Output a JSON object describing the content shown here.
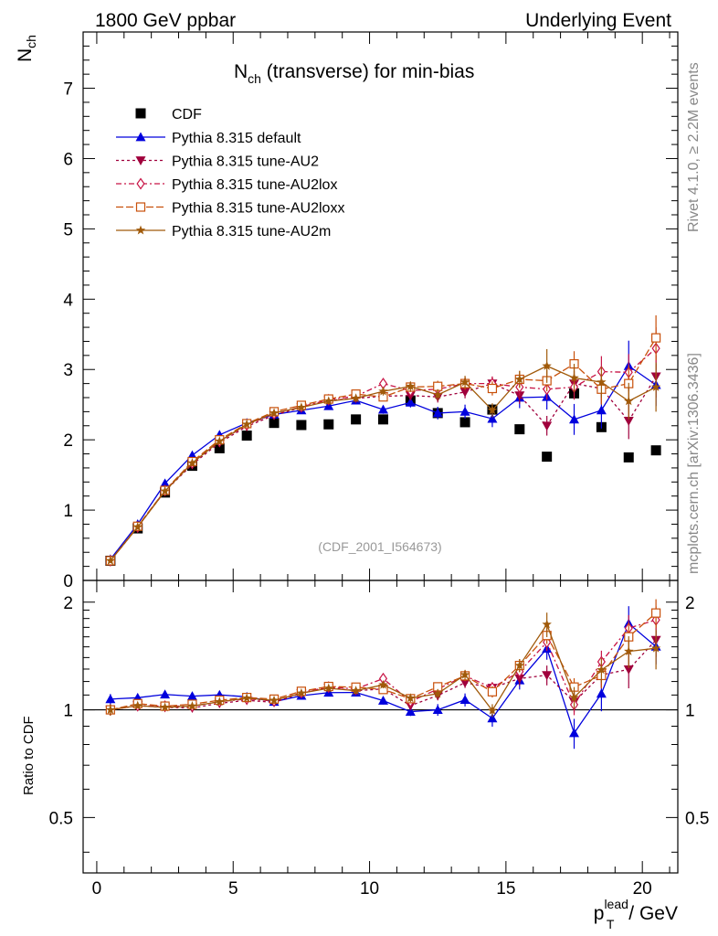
{
  "header": {
    "left": "1800 GeV ppbar",
    "right": "Underlying Event",
    "side_top": "Rivet 4.1.0, ≥ 2.2M events",
    "side_bottom": "mcplots.cern.ch [arXiv:1306.3436]"
  },
  "chart_data": {
    "type": "line",
    "title_main": "N",
    "title_sub": "ch",
    "title_rest": " (transverse) for min-bias",
    "watermark": "(CDF_2001_I564673)",
    "ylabel_main": "N",
    "ylabel_sub": "ch",
    "ratio_ylabel": "Ratio to CDF",
    "xlabel_p": "p",
    "xlabel_sup": "lead",
    "xlabel_sub": "T",
    "xlabel_rest": " / GeV",
    "xlim": [
      -0.5,
      21.3
    ],
    "ylim": [
      0,
      7.8
    ],
    "ratio_ylim": [
      0.35,
      2.3
    ],
    "x_ticks": [
      "0",
      "5",
      "10",
      "15",
      "20"
    ],
    "y_ticks": [
      "0",
      "1",
      "2",
      "3",
      "4",
      "5",
      "6",
      "7"
    ],
    "ratio_ticks_left": [
      "0.5",
      "1",
      "2"
    ],
    "ratio_ticks_right": [
      "0.5",
      "1",
      "2"
    ],
    "x": [
      0.5,
      1.5,
      2.5,
      3.5,
      4.5,
      5.5,
      6.5,
      7.5,
      8.5,
      9.5,
      10.5,
      11.5,
      12.5,
      13.5,
      14.5,
      15.5,
      16.5,
      17.5,
      18.5,
      19.5,
      20.5
    ],
    "data": {
      "name": "CDF",
      "values": [
        0.28,
        0.74,
        1.25,
        1.63,
        1.88,
        2.06,
        2.24,
        2.21,
        2.22,
        2.29,
        2.29,
        2.56,
        2.38,
        2.25,
        2.43,
        2.15,
        1.76,
        2.66,
        2.18,
        1.75,
        1.85
      ]
    },
    "series": [
      {
        "name": "Pythia 8.315 default",
        "color": "#0000dd",
        "dash": "",
        "marker": "triangle-up",
        "values": [
          0.3,
          0.8,
          1.38,
          1.78,
          2.07,
          2.24,
          2.36,
          2.42,
          2.48,
          2.56,
          2.43,
          2.53,
          2.38,
          2.4,
          2.3,
          2.6,
          2.61,
          2.29,
          2.42,
          3.05,
          2.78
        ],
        "errors": [
          0.01,
          0.01,
          0.01,
          0.01,
          0.02,
          0.02,
          0.03,
          0.03,
          0.04,
          0.05,
          0.06,
          0.07,
          0.09,
          0.1,
          0.12,
          0.15,
          0.18,
          0.22,
          0.26,
          0.36,
          0.3
        ]
      },
      {
        "name": "Pythia 8.315 tune-AU2",
        "color": "#a0003c",
        "dash": "3,3",
        "marker": "triangle-down",
        "values": [
          0.28,
          0.76,
          1.27,
          1.65,
          1.96,
          2.19,
          2.35,
          2.46,
          2.56,
          2.59,
          2.62,
          2.63,
          2.61,
          2.68,
          2.8,
          2.63,
          2.2,
          2.8,
          2.73,
          2.27,
          2.9
        ],
        "errors": [
          0.01,
          0.01,
          0.01,
          0.01,
          0.02,
          0.02,
          0.03,
          0.03,
          0.04,
          0.05,
          0.06,
          0.07,
          0.08,
          0.09,
          0.1,
          0.12,
          0.14,
          0.18,
          0.22,
          0.26,
          0.3
        ]
      },
      {
        "name": "Pythia 8.315 tune-AU2lox",
        "color": "#c81446",
        "dash": "6,3,2,3",
        "marker": "diamond-open",
        "values": [
          0.28,
          0.76,
          1.28,
          1.67,
          1.98,
          2.21,
          2.37,
          2.47,
          2.57,
          2.62,
          2.8,
          2.7,
          2.72,
          2.8,
          2.8,
          2.75,
          2.72,
          2.75,
          2.97,
          2.96,
          3.3
        ],
        "errors": [
          0.01,
          0.01,
          0.01,
          0.01,
          0.02,
          0.02,
          0.03,
          0.03,
          0.04,
          0.05,
          0.06,
          0.07,
          0.08,
          0.09,
          0.1,
          0.12,
          0.15,
          0.18,
          0.22,
          0.26,
          0.3
        ]
      },
      {
        "name": "Pythia 8.315 tune-AU2loxx",
        "color": "#c8500a",
        "dash": "8,3",
        "marker": "square-open",
        "values": [
          0.28,
          0.77,
          1.28,
          1.69,
          2.0,
          2.23,
          2.4,
          2.49,
          2.58,
          2.65,
          2.61,
          2.75,
          2.76,
          2.8,
          2.73,
          2.86,
          2.84,
          3.08,
          2.72,
          2.8,
          3.45
        ],
        "errors": [
          0.01,
          0.01,
          0.01,
          0.01,
          0.02,
          0.02,
          0.03,
          0.03,
          0.04,
          0.05,
          0.06,
          0.07,
          0.08,
          0.09,
          0.1,
          0.12,
          0.15,
          0.18,
          0.22,
          0.26,
          0.32
        ]
      },
      {
        "name": "Pythia 8.315 tune-AU2m",
        "color": "#a05a0a",
        "dash": "",
        "marker": "star",
        "values": [
          0.28,
          0.76,
          1.27,
          1.67,
          1.98,
          2.22,
          2.38,
          2.46,
          2.55,
          2.59,
          2.69,
          2.76,
          2.64,
          2.82,
          2.42,
          2.86,
          3.05,
          2.88,
          2.82,
          2.55,
          2.75
        ],
        "errors": [
          0.01,
          0.01,
          0.01,
          0.01,
          0.02,
          0.02,
          0.03,
          0.03,
          0.04,
          0.05,
          0.06,
          0.07,
          0.08,
          0.09,
          0.1,
          0.12,
          0.24,
          0.2,
          0.22,
          0.26,
          0.35
        ]
      }
    ]
  }
}
